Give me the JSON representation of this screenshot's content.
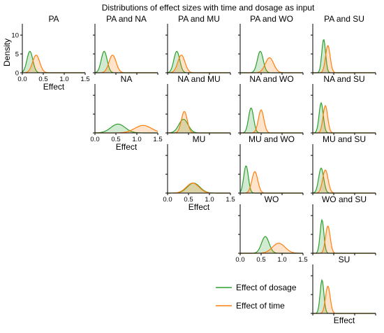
{
  "title": "Distributions of effect sizes with time and dosage as input",
  "ylabel": "Density",
  "xlabel": "Effect",
  "legend": {
    "placement": "bottom-center",
    "items": [
      {
        "label": "Effect of dosage",
        "color": "#2ca02c"
      },
      {
        "label": "Effect of time",
        "color": "#ff7f0e"
      }
    ]
  },
  "colors": {
    "dosage": "#2ca02c",
    "time": "#ff7f0e"
  },
  "chart_data": {
    "type": "area",
    "title": "Distributions of effect sizes with time and dosage as input",
    "xlabel": "Effect",
    "ylabel": "Density",
    "xlim": [
      0,
      1.5
    ],
    "ylim": [
      0,
      13
    ],
    "x_ticks": [
      "0.0",
      "0.5",
      "1.0",
      "1.5"
    ],
    "y_ticks": [
      "0",
      "5",
      "10"
    ],
    "grid": false,
    "series_names": [
      "Effect of dosage",
      "Effect of time"
    ],
    "panels": [
      {
        "title": "PA",
        "row": 0,
        "col": 0,
        "x_tick_labels": true,
        "y_tick_labels": true,
        "xlabel": true,
        "ylabel": true,
        "dosage": {
          "mean": 0.18,
          "sd": 0.07
        },
        "time": {
          "mean": 0.33,
          "sd": 0.085
        }
      },
      {
        "title": "PA and NA",
        "row": 0,
        "col": 1,
        "dosage": {
          "mean": 0.22,
          "sd": 0.07
        },
        "time": {
          "mean": 0.42,
          "sd": 0.085
        }
      },
      {
        "title": "PA and MU",
        "row": 0,
        "col": 2,
        "dosage": {
          "mean": 0.22,
          "sd": 0.07
        },
        "time": {
          "mean": 0.33,
          "sd": 0.085
        }
      },
      {
        "title": "PA and WO",
        "row": 0,
        "col": 3,
        "dosage": {
          "mean": 0.48,
          "sd": 0.07
        },
        "time": {
          "mean": 0.7,
          "sd": 0.1
        }
      },
      {
        "title": "PA and SU",
        "row": 0,
        "col": 4,
        "dosage": {
          "mean": 0.26,
          "sd": 0.045
        },
        "time": {
          "mean": 0.36,
          "sd": 0.055
        }
      },
      {
        "title": "NA",
        "row": 1,
        "col": 1,
        "x_tick_labels": true,
        "xlabel": true,
        "dosage": {
          "mean": 0.55,
          "sd": 0.17
        },
        "time": {
          "mean": 1.15,
          "sd": 0.2
        }
      },
      {
        "title": "NA and MU",
        "row": 1,
        "col": 2,
        "dosage": {
          "mean": 0.38,
          "sd": 0.11
        },
        "time": {
          "mean": 0.4,
          "sd": 0.07
        }
      },
      {
        "title": "NA and WO",
        "row": 1,
        "col": 3,
        "dosage": {
          "mean": 0.26,
          "sd": 0.06
        },
        "time": {
          "mean": 0.5,
          "sd": 0.065
        }
      },
      {
        "title": "NA and SU",
        "row": 1,
        "col": 4,
        "dosage": {
          "mean": 0.2,
          "sd": 0.05
        },
        "time": {
          "mean": 0.3,
          "sd": 0.055
        }
      },
      {
        "title": "MU",
        "row": 2,
        "col": 2,
        "x_tick_labels": true,
        "xlabel": true,
        "dosage": {
          "mean": 0.62,
          "sd": 0.15
        },
        "time": {
          "mean": 0.6,
          "sd": 0.15
        }
      },
      {
        "title": "MU and WO",
        "row": 2,
        "col": 3,
        "dosage": {
          "mean": 0.14,
          "sd": 0.055
        },
        "time": {
          "mean": 0.35,
          "sd": 0.07
        }
      },
      {
        "title": "MU and SU",
        "row": 2,
        "col": 4,
        "dosage": {
          "mean": 0.2,
          "sd": 0.06
        },
        "time": {
          "mean": 0.3,
          "sd": 0.065
        }
      },
      {
        "title": "WO",
        "row": 3,
        "col": 3,
        "x_tick_labels": true,
        "xlabel": false,
        "dosage": {
          "mean": 0.6,
          "sd": 0.09
        },
        "time": {
          "mean": 0.92,
          "sd": 0.15
        }
      },
      {
        "title": "WO and SU",
        "row": 3,
        "col": 4,
        "dosage": {
          "mean": 0.22,
          "sd": 0.045
        },
        "time": {
          "mean": 0.36,
          "sd": 0.055
        }
      },
      {
        "title": "SU",
        "row": 4,
        "col": 4,
        "x_tick_labels": false,
        "xlabel": true,
        "dosage": {
          "mean": 0.22,
          "sd": 0.045
        },
        "time": {
          "mean": 0.36,
          "sd": 0.055
        }
      }
    ]
  }
}
